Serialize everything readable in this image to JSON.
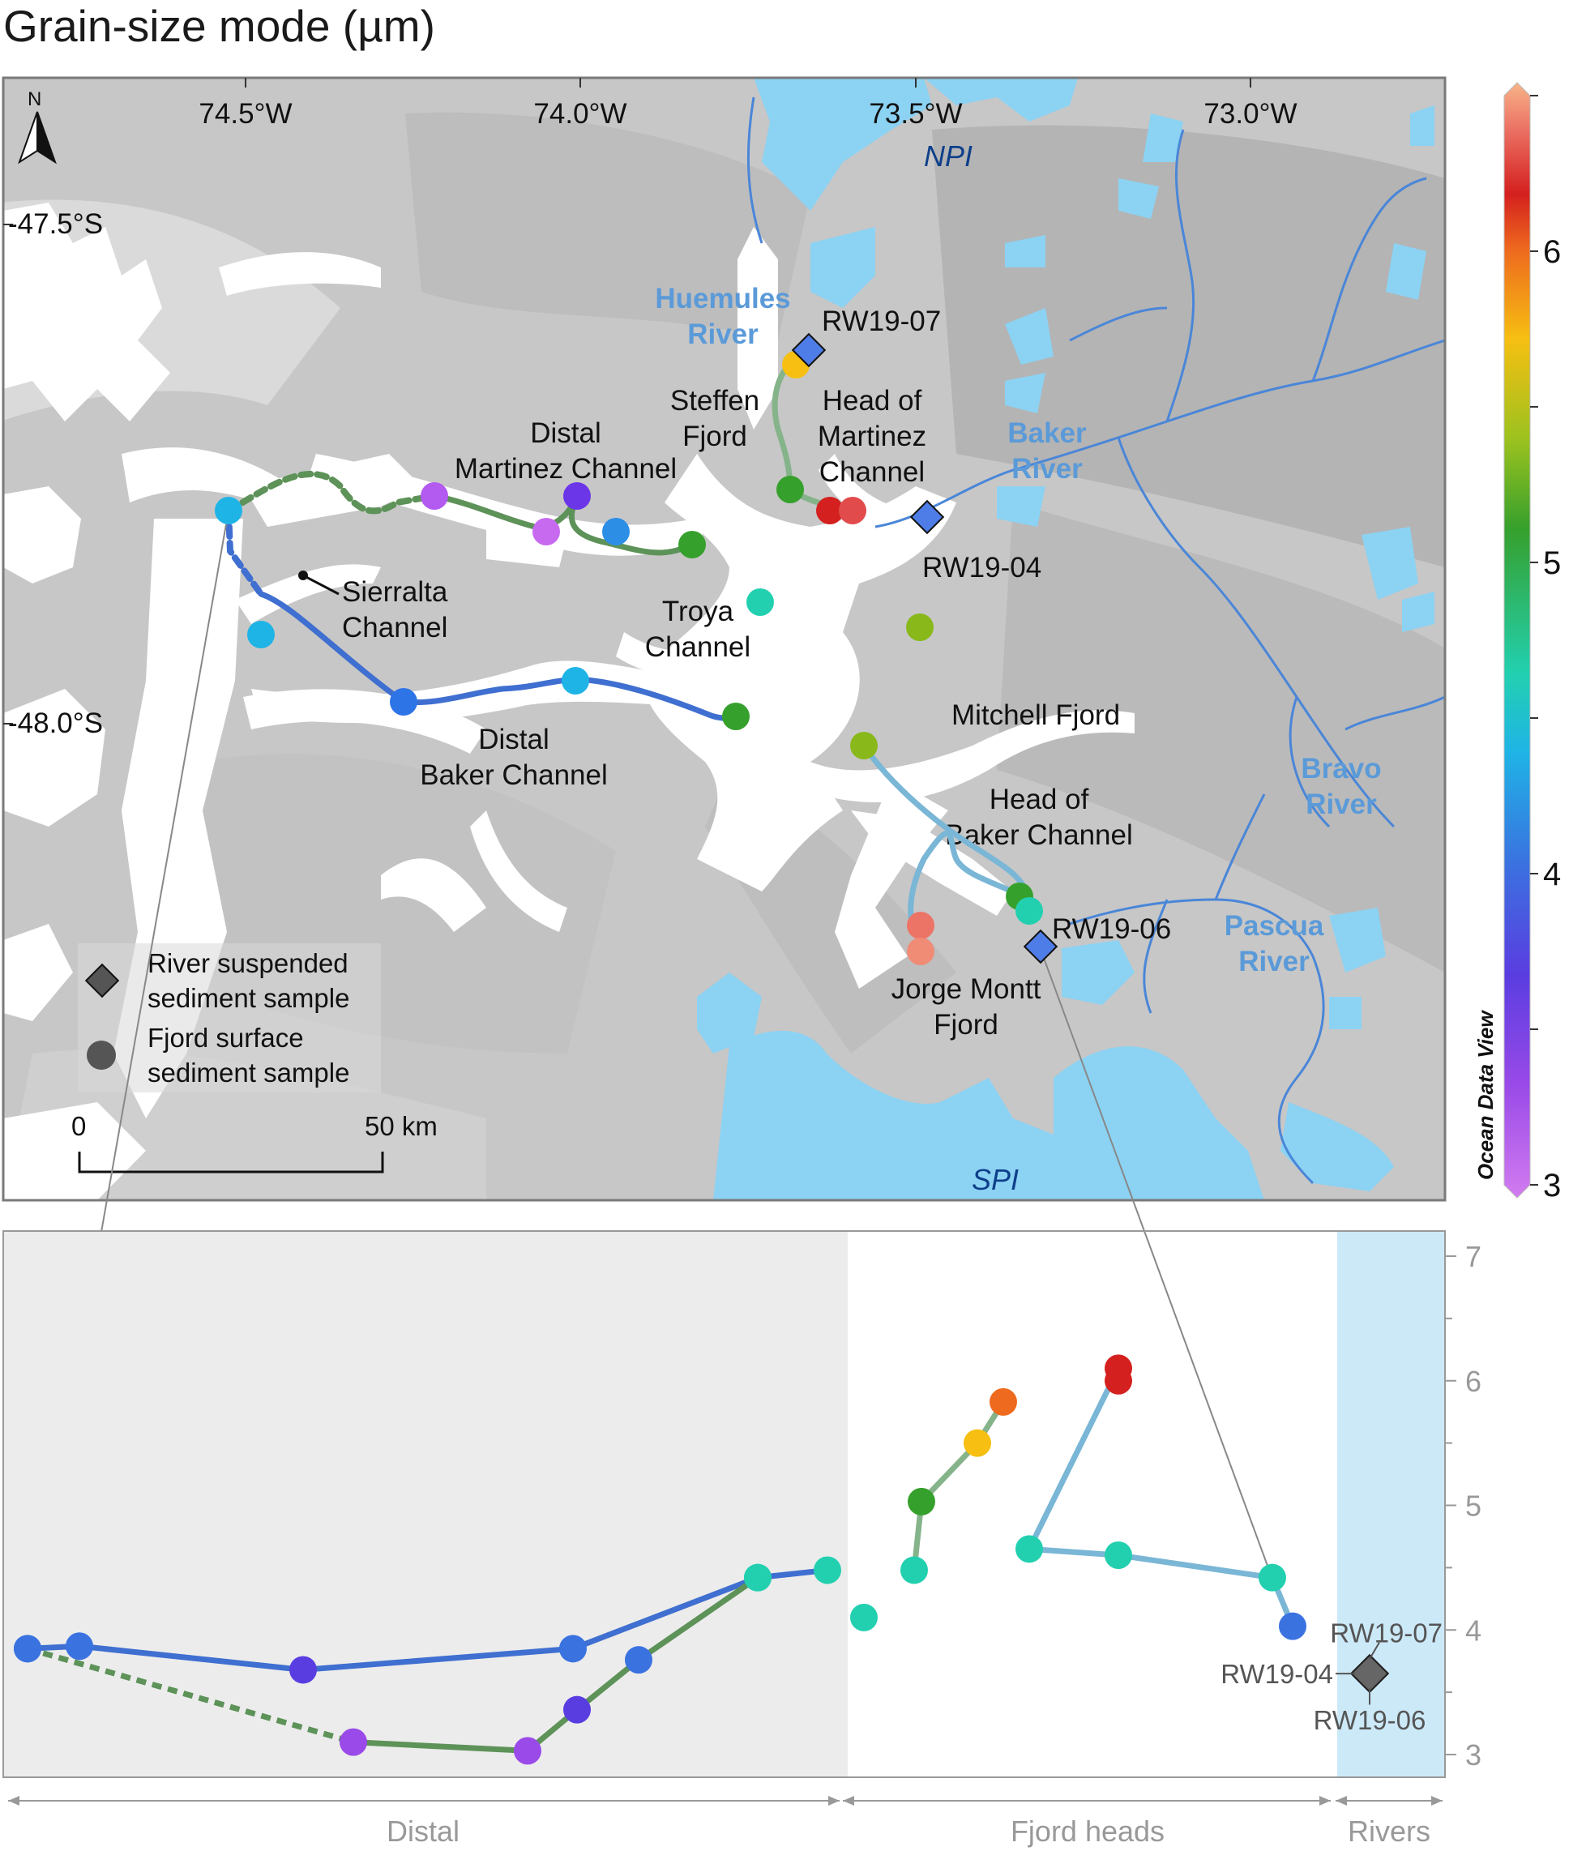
{
  "title": "Grain-size mode (µm)",
  "map": {
    "north_label": "N",
    "lon_ticks": [
      "74.5°W",
      "74.0°W",
      "73.5°W",
      "73.0°W"
    ],
    "lat_ticks": [
      "-47.5°S",
      "-48.0°S"
    ],
    "ice_labels": [
      "NPI",
      "SPI"
    ],
    "river_labels": [
      {
        "lines": [
          "Huemules",
          "River"
        ]
      },
      {
        "lines": [
          "Baker",
          "River"
        ]
      },
      {
        "lines": [
          "Bravo",
          "River"
        ]
      },
      {
        "lines": [
          "Pascua",
          "River"
        ]
      }
    ],
    "place_labels": [
      {
        "lines": [
          "Steffen",
          "Fjord"
        ]
      },
      {
        "lines": [
          "Head of",
          "Martinez",
          "Channel"
        ]
      },
      {
        "lines": [
          "Distal",
          "Martinez Channel"
        ]
      },
      {
        "lines": [
          "Sierralta",
          "Channel"
        ]
      },
      {
        "lines": [
          "Troya",
          "Channel"
        ]
      },
      {
        "lines": [
          "Mitchell Fjord"
        ]
      },
      {
        "lines": [
          "Distal",
          "Baker Channel"
        ]
      },
      {
        "lines": [
          "Head of",
          "Baker Channel"
        ]
      },
      {
        "lines": [
          "Jorge Montt",
          "Fjord"
        ]
      }
    ],
    "sample_labels": [
      "RW19-07",
      "RW19-04",
      "RW19-06"
    ],
    "legend": {
      "diamond": [
        "River suspended",
        "sediment sample"
      ],
      "circle": [
        "Fjord surface",
        "sediment sample"
      ]
    },
    "scale_bar": {
      "start": "0",
      "end": "50 km"
    }
  },
  "colorbar": {
    "ticks": [
      "3",
      "4",
      "5",
      "6"
    ],
    "range": [
      3,
      6.5
    ],
    "label": "Ocean Data View"
  },
  "chart_data": {
    "type": "scatter",
    "ylim": [
      3,
      7
    ],
    "y_ticks": [
      "3",
      "4",
      "5",
      "6",
      "7"
    ],
    "group_labels": [
      "Distal",
      "Fjord heads",
      "Rivers"
    ],
    "series": [
      {
        "color": "#3f6fd0",
        "values": [
          3.85,
          3.87,
          3.68,
          3.85,
          4.42,
          4.48
        ]
      },
      {
        "color": "#5d9258",
        "values": [
          3.85,
          3.1,
          3.03,
          3.36,
          3.76,
          4.42
        ]
      },
      {
        "color": "#85b38a",
        "values": [
          4.48,
          5.03,
          5.5,
          5.83
        ]
      },
      {
        "color": "#7ab6d6",
        "values": [
          4.65,
          6.0,
          6.1,
          4.6,
          4.42,
          4.03
        ]
      }
    ],
    "river_values": [
      3.65,
      3.65,
      3.65
    ],
    "river_labels": [
      "RW19-07",
      "RW19-04",
      "RW19-06"
    ]
  }
}
